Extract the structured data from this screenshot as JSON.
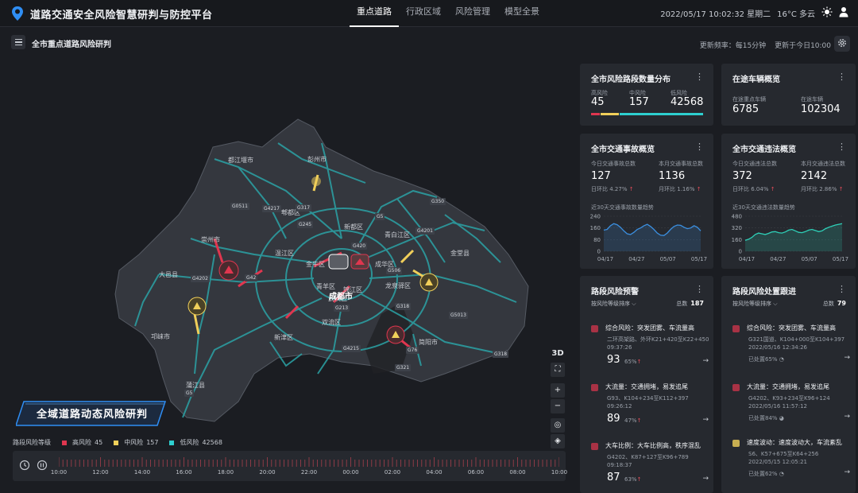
{
  "app": {
    "title": "道路交通安全风险智慧研判与防控平台",
    "nav": [
      "重点道路",
      "行政区域",
      "风险管理",
      "模型全景"
    ],
    "datetime": "2022/05/17 10:02:32 星期二",
    "weather": "16°C 多云"
  },
  "subheader": {
    "title": "全市重点道路风险研判",
    "update_freq": "更新频率：每15分钟",
    "updated_at": "更新于今日10:00"
  },
  "map": {
    "places": [
      {
        "name": "都江堰市"
      },
      {
        "name": "彭州市"
      },
      {
        "name": "郫都区"
      },
      {
        "name": "崇州市"
      },
      {
        "name": "新都区"
      },
      {
        "name": "青白江区"
      },
      {
        "name": "温江区"
      },
      {
        "name": "大邑县"
      },
      {
        "name": "金堂县"
      },
      {
        "name": "成华区"
      },
      {
        "name": "金牛区"
      },
      {
        "name": "青羊区"
      },
      {
        "name": "锦江区"
      },
      {
        "name": "武侯区"
      },
      {
        "name": "龙泉驿区"
      },
      {
        "name": "成都市"
      },
      {
        "name": "双流区"
      },
      {
        "name": "新津区"
      },
      {
        "name": "邛崃市"
      },
      {
        "name": "简阳市"
      },
      {
        "name": "蒲江县"
      }
    ],
    "road_tags": [
      "G4202",
      "G0511",
      "G4217",
      "G317",
      "G245",
      "G350",
      "G5",
      "G420",
      "G42",
      "G4201",
      "G506",
      "G213",
      "G318",
      "G5013",
      "G4215",
      "G76",
      "G321",
      "G318",
      "G5"
    ],
    "controls": [
      "3D",
      "⛶",
      "+",
      "−",
      "◎",
      "◈"
    ]
  },
  "banner": {
    "title": "全域道路动态风险研判"
  },
  "legend": {
    "label": "路段风险等级",
    "items": [
      {
        "name": "高风险",
        "value": "45",
        "color": "#e0364f"
      },
      {
        "name": "中风险",
        "value": "157",
        "color": "#f0cf5a"
      },
      {
        "name": "低风险",
        "value": "42568",
        "color": "#2ed0d0"
      }
    ]
  },
  "timeline": {
    "labels": [
      "10:00",
      "12:00",
      "14:00",
      "16:00",
      "18:00",
      "20:00",
      "22:00",
      "00:00",
      "02:00",
      "04:00",
      "06:00",
      "08:00",
      "10:00"
    ]
  },
  "risk_dist": {
    "title": "全市风险路段数量分布",
    "items": [
      {
        "label": "高风险",
        "value": "45",
        "color": "#e0364f"
      },
      {
        "label": "中风险",
        "value": "157",
        "color": "#f0cf5a"
      },
      {
        "label": "低风险",
        "value": "42568",
        "color": "#2ed0d0"
      }
    ]
  },
  "vehicles": {
    "title": "在途车辆概览",
    "items": [
      {
        "label": "在途重点车辆",
        "value": "6785"
      },
      {
        "label": "在途车辆",
        "value": "102304"
      }
    ]
  },
  "accidents": {
    "title": "全市交通事故概览",
    "items": [
      {
        "label": "今日交通事故总数",
        "value": "127",
        "sub_label": "日环比",
        "sub_value": "4.27%"
      },
      {
        "label": "本月交通事故总数",
        "value": "1136",
        "sub_label": "月环比",
        "sub_value": "1.16%"
      }
    ],
    "chart_caption": "近30天交通事故数量趋势"
  },
  "violations": {
    "title": "全市交通违法概览",
    "items": [
      {
        "label": "今日交通违法总数",
        "value": "372",
        "sub_label": "日环比",
        "sub_value": "6.04%"
      },
      {
        "label": "本月交通违法总数",
        "value": "2142",
        "sub_label": "月环比",
        "sub_value": "2.86%"
      }
    ],
    "chart_caption": "近30天交通违法数量趋势"
  },
  "chart_data": [
    {
      "type": "area",
      "title": "近30天交通事故数量趋势",
      "x_ticks": [
        "04/17",
        "04/27",
        "05/07",
        "05/17"
      ],
      "y_ticks": [
        "240",
        "160",
        "80",
        "0"
      ],
      "ylim": [
        0,
        240
      ],
      "values": [
        145,
        150,
        175,
        190,
        182,
        165,
        140,
        120,
        115,
        130,
        150,
        160,
        175,
        185,
        170,
        150,
        125,
        110,
        108,
        125,
        150,
        170,
        180,
        178,
        165,
        155,
        160,
        175,
        165,
        140
      ],
      "color": "#3b8fe0"
    },
    {
      "type": "area",
      "title": "近30天交通违法数量趋势",
      "x_ticks": [
        "04/17",
        "04/27",
        "05/07",
        "05/17"
      ],
      "y_ticks": [
        "480",
        "320",
        "160",
        "0"
      ],
      "ylim": [
        0,
        480
      ],
      "values": [
        150,
        165,
        190,
        230,
        250,
        240,
        230,
        245,
        265,
        270,
        255,
        250,
        265,
        290,
        300,
        280,
        260,
        255,
        270,
        290,
        300,
        285,
        270,
        280,
        310,
        330,
        345,
        360,
        370,
        380
      ],
      "color": "#2ed0b8"
    }
  ],
  "warnings": {
    "title": "路段风险预警",
    "sort": "按风险等级排序",
    "total_label": "总数",
    "total": "187",
    "items": [
      {
        "title": "综合风险：突发团雾、车流量高",
        "line1": "二环高架路、外环K21+420至K22+450",
        "line2": "09:37:26",
        "score": "93",
        "pct": "65%",
        "color": "#e0364f"
      },
      {
        "title": "大流量：交通拥堵，易发追尾",
        "line1": "G93、K104+234至K112+397",
        "line2": "09:26:12",
        "score": "89",
        "pct": "47%",
        "color": "#e0364f"
      },
      {
        "title": "大车比例：大车比例高，秩序混乱",
        "line1": "G4202、K87+127至K96+789",
        "line2": "09:18:37",
        "score": "87",
        "pct": "63%",
        "color": "#e0364f"
      }
    ]
  },
  "disposal": {
    "title": "路段风险处置跟进",
    "sort": "按风险等级排序",
    "total_label": "总数",
    "total": "79",
    "items": [
      {
        "title": "综合风险：突发团雾、车流量高",
        "line1": "G321国道、K104+000至K104+397",
        "line2": "2022/05/16 12:34:26",
        "status": "已处置65%",
        "color": "#e0364f"
      },
      {
        "title": "大流量：交通拥堵，易发追尾",
        "line1": "G4202、K93+234至K96+124",
        "line2": "2022/05/16 11:57:12",
        "status": "已处置84%",
        "color": "#e0364f"
      },
      {
        "title": "速度波动：速度波动大，车流紊乱",
        "line1": "S6、K57+675至K64+256",
        "line2": "2022/05/15 12:05:21",
        "status": "已处置62%",
        "color": "#f0cf5a"
      }
    ]
  }
}
